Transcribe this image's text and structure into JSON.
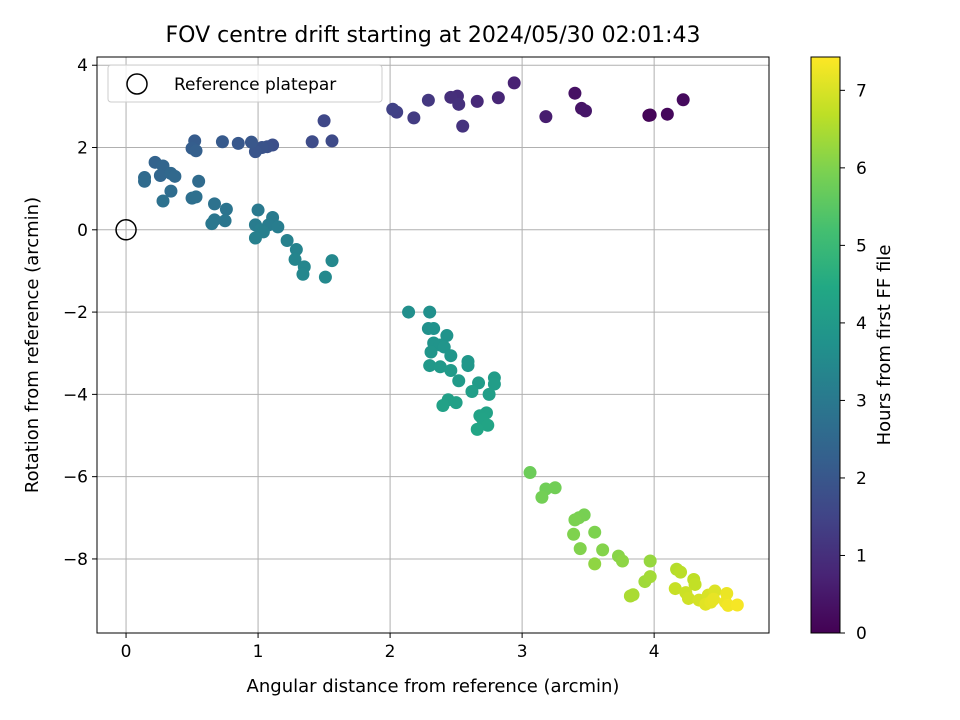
{
  "chart_data": {
    "type": "scatter",
    "title": "FOV centre drift starting at 2024/05/30 02:01:43",
    "xlabel": "Angular distance from reference (arcmin)",
    "ylabel": "Rotation from reference (arcmin)",
    "xlim": [
      -0.22,
      4.87
    ],
    "ylim": [
      -9.8,
      4.2
    ],
    "xticks": [
      0,
      1,
      2,
      3,
      4
    ],
    "xtick_labels": [
      "0",
      "1",
      "2",
      "3",
      "4"
    ],
    "yticks": [
      4,
      2,
      0,
      -2,
      -4,
      -6,
      -8
    ],
    "ytick_labels": [
      "4",
      "2",
      "0",
      "−2",
      "−4",
      "−6",
      "−8"
    ],
    "grid": true,
    "legend": {
      "position": "top-left",
      "entries": [
        "Reference platepar"
      ]
    },
    "reference_point": {
      "x": 0,
      "y": 0,
      "marker": "open-circle",
      "label": "Reference platepar"
    },
    "colorbar": {
      "label": "Hours from first FF file",
      "colormap": "viridis",
      "range": [
        0,
        7.43
      ],
      "ticks": [
        0,
        1,
        2,
        3,
        4,
        5,
        6,
        7
      ],
      "tick_labels": [
        "0",
        "1",
        "2",
        "3",
        "4",
        "5",
        "6",
        "7"
      ]
    },
    "series": [
      {
        "points": [
          {
            "x": 3.96,
            "y": 2.78,
            "c": 0.0
          },
          {
            "x": 3.97,
            "y": 2.79,
            "c": 0.1
          },
          {
            "x": 4.1,
            "y": 2.81,
            "c": 0.15
          },
          {
            "x": 4.22,
            "y": 3.16,
            "c": 0.2
          },
          {
            "x": 3.4,
            "y": 3.32,
            "c": 0.35
          },
          {
            "x": 3.45,
            "y": 2.95,
            "c": 0.4
          },
          {
            "x": 3.48,
            "y": 2.89,
            "c": 0.45
          },
          {
            "x": 3.18,
            "y": 2.75,
            "c": 0.6
          },
          {
            "x": 2.94,
            "y": 3.57,
            "c": 0.7
          },
          {
            "x": 2.82,
            "y": 3.21,
            "c": 0.8
          },
          {
            "x": 2.66,
            "y": 3.12,
            "c": 0.85
          },
          {
            "x": 2.51,
            "y": 3.25,
            "c": 0.95
          },
          {
            "x": 2.46,
            "y": 3.22,
            "c": 1.0
          },
          {
            "x": 2.52,
            "y": 3.05,
            "c": 1.05
          },
          {
            "x": 2.55,
            "y": 2.52,
            "c": 1.1
          },
          {
            "x": 2.29,
            "y": 3.15,
            "c": 1.2
          },
          {
            "x": 2.18,
            "y": 2.72,
            "c": 1.3
          },
          {
            "x": 2.05,
            "y": 2.86,
            "c": 1.4
          },
          {
            "x": 2.02,
            "y": 2.93,
            "c": 1.45
          },
          {
            "x": 1.5,
            "y": 2.65,
            "c": 1.6
          },
          {
            "x": 1.56,
            "y": 2.16,
            "c": 1.65
          },
          {
            "x": 1.41,
            "y": 2.14,
            "c": 1.7
          },
          {
            "x": 1.11,
            "y": 2.06,
            "c": 1.8
          },
          {
            "x": 1.07,
            "y": 2.02,
            "c": 1.85
          },
          {
            "x": 1.03,
            "y": 2.0,
            "c": 1.9
          },
          {
            "x": 0.98,
            "y": 1.9,
            "c": 1.95
          },
          {
            "x": 0.95,
            "y": 2.13,
            "c": 2.0
          },
          {
            "x": 0.85,
            "y": 2.1,
            "c": 2.05
          },
          {
            "x": 0.73,
            "y": 2.14,
            "c": 2.1
          },
          {
            "x": 0.52,
            "y": 2.16,
            "c": 2.15
          },
          {
            "x": 0.5,
            "y": 1.98,
            "c": 2.2
          },
          {
            "x": 0.53,
            "y": 1.92,
            "c": 2.25
          },
          {
            "x": 0.22,
            "y": 1.64,
            "c": 2.35
          },
          {
            "x": 0.28,
            "y": 1.55,
            "c": 2.4
          },
          {
            "x": 0.26,
            "y": 1.32,
            "c": 2.45
          },
          {
            "x": 0.34,
            "y": 1.37,
            "c": 2.5
          },
          {
            "x": 0.37,
            "y": 1.3,
            "c": 2.52
          },
          {
            "x": 0.14,
            "y": 1.27,
            "c": 2.55
          },
          {
            "x": 0.14,
            "y": 1.18,
            "c": 2.58
          },
          {
            "x": 0.55,
            "y": 1.18,
            "c": 2.6
          },
          {
            "x": 0.34,
            "y": 0.94,
            "c": 2.65
          },
          {
            "x": 0.5,
            "y": 0.77,
            "c": 2.7
          },
          {
            "x": 0.53,
            "y": 0.8,
            "c": 2.72
          },
          {
            "x": 0.28,
            "y": 0.7,
            "c": 2.75
          },
          {
            "x": 0.67,
            "y": 0.63,
            "c": 2.8
          },
          {
            "x": 0.76,
            "y": 0.5,
            "c": 2.85
          },
          {
            "x": 0.67,
            "y": 0.24,
            "c": 2.9
          },
          {
            "x": 0.75,
            "y": 0.22,
            "c": 2.92
          },
          {
            "x": 0.65,
            "y": 0.15,
            "c": 2.95
          },
          {
            "x": 1.0,
            "y": 0.48,
            "c": 3.0
          },
          {
            "x": 1.11,
            "y": 0.3,
            "c": 3.05
          },
          {
            "x": 0.98,
            "y": 0.12,
            "c": 3.08
          },
          {
            "x": 1.08,
            "y": 0.12,
            "c": 3.1
          },
          {
            "x": 1.15,
            "y": 0.07,
            "c": 3.12
          },
          {
            "x": 1.02,
            "y": 0.0,
            "c": 3.15
          },
          {
            "x": 1.04,
            "y": -0.05,
            "c": 3.18
          },
          {
            "x": 0.98,
            "y": -0.2,
            "c": 3.2
          },
          {
            "x": 1.22,
            "y": -0.26,
            "c": 3.25
          },
          {
            "x": 1.29,
            "y": -0.48,
            "c": 3.3
          },
          {
            "x": 1.28,
            "y": -0.72,
            "c": 3.35
          },
          {
            "x": 1.35,
            "y": -0.9,
            "c": 3.4
          },
          {
            "x": 1.34,
            "y": -1.08,
            "c": 3.42
          },
          {
            "x": 1.56,
            "y": -0.75,
            "c": 3.45
          },
          {
            "x": 1.51,
            "y": -1.15,
            "c": 3.48
          },
          {
            "x": 2.14,
            "y": -2.0,
            "c": 3.65
          },
          {
            "x": 2.3,
            "y": -2.0,
            "c": 3.7
          },
          {
            "x": 2.29,
            "y": -2.4,
            "c": 3.72
          },
          {
            "x": 2.33,
            "y": -2.4,
            "c": 3.75
          },
          {
            "x": 2.43,
            "y": -2.57,
            "c": 3.78
          },
          {
            "x": 2.33,
            "y": -2.75,
            "c": 3.8
          },
          {
            "x": 2.38,
            "y": -2.8,
            "c": 3.82
          },
          {
            "x": 2.41,
            "y": -2.85,
            "c": 3.84
          },
          {
            "x": 2.31,
            "y": -2.97,
            "c": 3.86
          },
          {
            "x": 2.46,
            "y": -3.06,
            "c": 3.88
          },
          {
            "x": 2.59,
            "y": -3.2,
            "c": 3.9
          },
          {
            "x": 2.59,
            "y": -3.3,
            "c": 3.92
          },
          {
            "x": 2.3,
            "y": -3.3,
            "c": 3.95
          },
          {
            "x": 2.38,
            "y": -3.33,
            "c": 3.97
          },
          {
            "x": 2.46,
            "y": -3.42,
            "c": 4.0
          },
          {
            "x": 2.52,
            "y": -3.67,
            "c": 4.02
          },
          {
            "x": 2.67,
            "y": -3.72,
            "c": 4.05
          },
          {
            "x": 2.79,
            "y": -3.6,
            "c": 4.08
          },
          {
            "x": 2.79,
            "y": -3.75,
            "c": 4.1
          },
          {
            "x": 2.62,
            "y": -3.93,
            "c": 4.12
          },
          {
            "x": 2.75,
            "y": -4.0,
            "c": 4.15
          },
          {
            "x": 2.44,
            "y": -4.13,
            "c": 4.18
          },
          {
            "x": 2.5,
            "y": -4.2,
            "c": 4.2
          },
          {
            "x": 2.4,
            "y": -4.27,
            "c": 4.22
          },
          {
            "x": 2.73,
            "y": -4.45,
            "c": 4.25
          },
          {
            "x": 2.68,
            "y": -4.52,
            "c": 4.28
          },
          {
            "x": 2.7,
            "y": -4.6,
            "c": 4.3
          },
          {
            "x": 2.74,
            "y": -4.75,
            "c": 4.32
          },
          {
            "x": 2.66,
            "y": -4.85,
            "c": 4.35
          },
          {
            "x": 3.06,
            "y": -5.9,
            "c": 5.75
          },
          {
            "x": 3.18,
            "y": -6.3,
            "c": 5.8
          },
          {
            "x": 3.25,
            "y": -6.27,
            "c": 5.82
          },
          {
            "x": 3.15,
            "y": -6.5,
            "c": 5.85
          },
          {
            "x": 3.47,
            "y": -6.93,
            "c": 5.9
          },
          {
            "x": 3.43,
            "y": -7.0,
            "c": 5.92
          },
          {
            "x": 3.4,
            "y": -7.05,
            "c": 5.95
          },
          {
            "x": 3.55,
            "y": -7.35,
            "c": 5.98
          },
          {
            "x": 3.39,
            "y": -7.4,
            "c": 6.0
          },
          {
            "x": 3.44,
            "y": -7.75,
            "c": 6.02
          },
          {
            "x": 3.61,
            "y": -7.78,
            "c": 6.05
          },
          {
            "x": 3.73,
            "y": -7.93,
            "c": 6.1
          },
          {
            "x": 3.76,
            "y": -8.05,
            "c": 6.15
          },
          {
            "x": 3.55,
            "y": -8.12,
            "c": 6.18
          },
          {
            "x": 3.97,
            "y": -8.05,
            "c": 6.25
          },
          {
            "x": 3.93,
            "y": -8.55,
            "c": 6.35
          },
          {
            "x": 3.97,
            "y": -8.43,
            "c": 6.4
          },
          {
            "x": 3.84,
            "y": -8.87,
            "c": 6.45
          },
          {
            "x": 3.82,
            "y": -8.9,
            "c": 6.48
          },
          {
            "x": 4.17,
            "y": -8.25,
            "c": 6.6
          },
          {
            "x": 4.2,
            "y": -8.32,
            "c": 6.65
          },
          {
            "x": 4.3,
            "y": -8.5,
            "c": 6.7
          },
          {
            "x": 4.31,
            "y": -8.62,
            "c": 6.75
          },
          {
            "x": 4.16,
            "y": -8.72,
            "c": 6.8
          },
          {
            "x": 4.24,
            "y": -8.82,
            "c": 6.85
          },
          {
            "x": 4.26,
            "y": -8.96,
            "c": 6.9
          },
          {
            "x": 4.34,
            "y": -9.0,
            "c": 6.95
          },
          {
            "x": 4.41,
            "y": -8.88,
            "c": 7.0
          },
          {
            "x": 4.46,
            "y": -8.78,
            "c": 7.05
          },
          {
            "x": 4.39,
            "y": -9.1,
            "c": 7.1
          },
          {
            "x": 4.43,
            "y": -9.05,
            "c": 7.15
          },
          {
            "x": 4.45,
            "y": -8.98,
            "c": 7.18
          },
          {
            "x": 4.55,
            "y": -8.84,
            "c": 7.22
          },
          {
            "x": 4.54,
            "y": -9.05,
            "c": 7.25
          },
          {
            "x": 4.56,
            "y": -9.13,
            "c": 7.3
          },
          {
            "x": 4.63,
            "y": -9.12,
            "c": 7.35
          }
        ]
      }
    ]
  }
}
